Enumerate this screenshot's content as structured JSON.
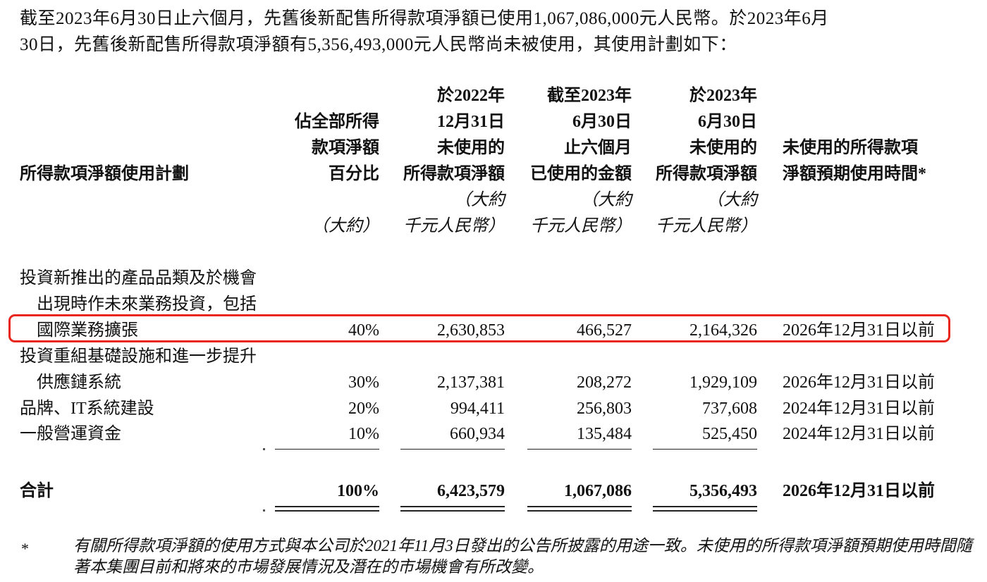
{
  "intro": {
    "line1": "截至2023年6月30日止六個月，先舊後新配售所得款項淨額已使用1,067,086,000元人民幣。於2023年6月",
    "line2": "30日，先舊後新配售所得款項淨額有5,356,493,000元人民幣尚未被使用，其使用計劃如下："
  },
  "table": {
    "headers": {
      "plan": "所得款項淨額使用計劃",
      "percent": "佔全部所得\n款項淨額\n百分比",
      "unused_2022": "於2022年\n12月31日\n未使用的\n所得款項淨額",
      "used_h1_2023": "截至2023年\n6月30日\n止六個月\n已使用的金額",
      "unused_2023": "於2023年\n6月30日\n未使用的\n所得款項淨額",
      "timeline": "未使用的所得款項\n淨額預期使用時間*"
    },
    "units": {
      "percent": "（大約）",
      "amount": "（大約\n千元人民幣）"
    },
    "rows": [
      {
        "plan": "投資新推出的產品品類及於機會\n　出現時作未來業務投資，包括\n　國際業務擴張",
        "percent": "40%",
        "unused_2022": "2,630,853",
        "used_h1_2023": "466,527",
        "unused_2023": "2,164,326",
        "timeline": "2026年12月31日以前"
      },
      {
        "plan": "投資重組基礎設施和進一步提升\n　供應鏈系統",
        "percent": "30%",
        "unused_2022": "2,137,381",
        "used_h1_2023": "208,272",
        "unused_2023": "1,929,109",
        "timeline": "2026年12月31日以前"
      },
      {
        "plan": "品牌、IT系統建設",
        "percent": "20%",
        "unused_2022": "994,411",
        "used_h1_2023": "256,803",
        "unused_2023": "737,608",
        "timeline": "2024年12月31日以前"
      },
      {
        "plan": "一般營運資金",
        "percent": "10%",
        "unused_2022": "660,934",
        "used_h1_2023": "135,484",
        "unused_2023": "525,450",
        "timeline": "2024年12月31日以前"
      }
    ],
    "total": {
      "plan": "合計",
      "percent": "100%",
      "unused_2022": "6,423,579",
      "used_h1_2023": "1,067,086",
      "unused_2023": "5,356,493",
      "timeline": "2026年12月31日以前"
    }
  },
  "footnote": {
    "marker": "*",
    "text": "有關所得款項淨額的使用方式與本公司於2021年11月3日發出的公告所披露的用途一致。未使用的所得款項淨額預期使用時間隨著本集團目前和將來的市場發展情況及潛在的市場機會有所改變。"
  },
  "highlight_color": "#e8261b"
}
